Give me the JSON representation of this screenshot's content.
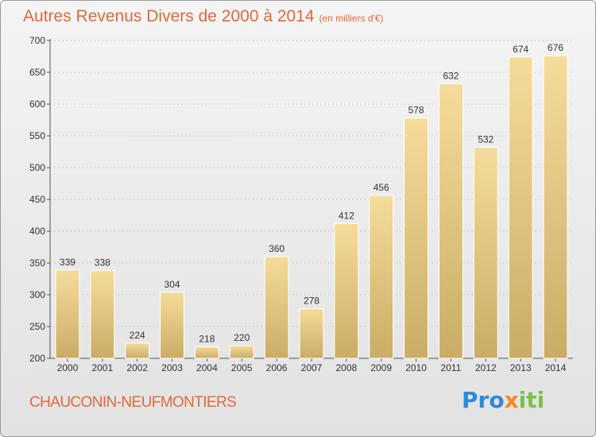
{
  "title": "Autres Revenus Divers de 2000 à 2014",
  "unit_note": "(en milliers d'€)",
  "location": "CHAUCONIN-NEUFMONTIERS",
  "logo": {
    "part1": "Pro",
    "part2": "x",
    "part3": "iti"
  },
  "colors": {
    "title": "#de6a3a",
    "bar_top": "#f6dc9a",
    "bar_bottom": "#c9ad66"
  },
  "chart_data": {
    "type": "bar",
    "title": "Autres Revenus Divers de 2000 à 2014",
    "xlabel": "",
    "ylabel": "",
    "categories": [
      "2000",
      "2001",
      "2002",
      "2003",
      "2004",
      "2005",
      "2006",
      "2007",
      "2008",
      "2009",
      "2010",
      "2011",
      "2012",
      "2013",
      "2014"
    ],
    "values": [
      339,
      338,
      224,
      304,
      218,
      220,
      360,
      278,
      412,
      456,
      578,
      632,
      532,
      674,
      676
    ],
    "ylim": [
      200,
      700
    ],
    "yticks": [
      200,
      250,
      300,
      350,
      400,
      450,
      500,
      550,
      600,
      650,
      700
    ],
    "grid": true,
    "data_labels": true
  }
}
